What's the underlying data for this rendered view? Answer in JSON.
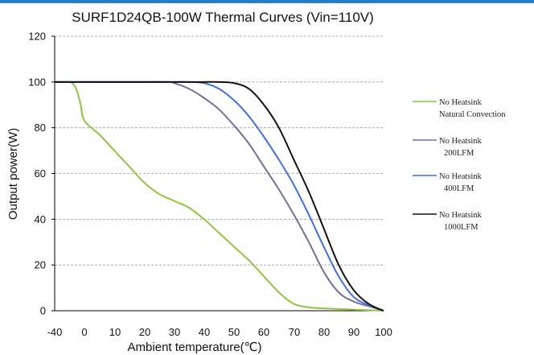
{
  "chart_data": {
    "type": "line",
    "title": "SURF1D24QB-100W Thermal Curves (Vin=110V)",
    "xlabel": "Ambient temperature(℃)",
    "ylabel": "Output power(W)",
    "xticks": [
      "-40",
      "0",
      "10",
      "20",
      "30",
      "40",
      "50",
      "60",
      "70",
      "80",
      "90",
      "100"
    ],
    "yticks": [
      0,
      20,
      40,
      60,
      80,
      100,
      120
    ],
    "ylim": [
      0,
      120
    ],
    "grid": "horizontal dashed",
    "legend_position": "right",
    "series": [
      {
        "legend_lines": [
          "No Heatsink",
          "Natural Convection"
        ],
        "color": "#8cc63f",
        "points": [
          [
            -40,
            100
          ],
          [
            -35,
            100
          ],
          [
            -30,
            100
          ],
          [
            -20,
            100
          ],
          [
            -15,
            99
          ],
          [
            -10,
            96
          ],
          [
            -5,
            90
          ],
          [
            0,
            83
          ],
          [
            5,
            77
          ],
          [
            10,
            70
          ],
          [
            15,
            63
          ],
          [
            20,
            56
          ],
          [
            25,
            51
          ],
          [
            30,
            48
          ],
          [
            35,
            45
          ],
          [
            40,
            40
          ],
          [
            45,
            34
          ],
          [
            50,
            28
          ],
          [
            55,
            22
          ],
          [
            60,
            15
          ],
          [
            65,
            8
          ],
          [
            70,
            3
          ],
          [
            75,
            1.5
          ],
          [
            80,
            1
          ],
          [
            90,
            0.5
          ],
          [
            100,
            0
          ]
        ]
      },
      {
        "legend_lines": [
          "No Heatsink",
          "200LFM"
        ],
        "color": "#7a6c96",
        "points": [
          [
            -40,
            100
          ],
          [
            0,
            100
          ],
          [
            20,
            100
          ],
          [
            28,
            100
          ],
          [
            30,
            99.5
          ],
          [
            35,
            97
          ],
          [
            40,
            93
          ],
          [
            45,
            88
          ],
          [
            50,
            81
          ],
          [
            55,
            73
          ],
          [
            60,
            63
          ],
          [
            65,
            53
          ],
          [
            70,
            42
          ],
          [
            75,
            30
          ],
          [
            80,
            17
          ],
          [
            85,
            8
          ],
          [
            90,
            4
          ],
          [
            95,
            2
          ],
          [
            100,
            0
          ]
        ]
      },
      {
        "legend_lines": [
          "No Heatsink",
          "400LFM"
        ],
        "color": "#3d6fe0",
        "points": [
          [
            -40,
            100
          ],
          [
            0,
            100
          ],
          [
            20,
            100
          ],
          [
            30,
            100
          ],
          [
            35,
            100
          ],
          [
            40,
            99.5
          ],
          [
            45,
            97
          ],
          [
            50,
            92
          ],
          [
            55,
            85
          ],
          [
            60,
            76
          ],
          [
            65,
            66
          ],
          [
            70,
            55
          ],
          [
            75,
            42
          ],
          [
            80,
            28
          ],
          [
            85,
            15
          ],
          [
            90,
            6
          ],
          [
            95,
            2.5
          ],
          [
            100,
            0
          ]
        ]
      },
      {
        "legend_lines": [
          "No Heatsink",
          "1000LFM"
        ],
        "color": "#111111",
        "points": [
          [
            -40,
            100
          ],
          [
            0,
            100
          ],
          [
            20,
            100
          ],
          [
            30,
            100
          ],
          [
            35,
            100
          ],
          [
            40,
            100
          ],
          [
            45,
            100
          ],
          [
            50,
            99.5
          ],
          [
            55,
            97
          ],
          [
            60,
            90
          ],
          [
            65,
            80
          ],
          [
            70,
            66
          ],
          [
            75,
            52
          ],
          [
            80,
            36
          ],
          [
            85,
            20
          ],
          [
            90,
            9
          ],
          [
            95,
            3
          ],
          [
            100,
            0
          ]
        ]
      }
    ]
  }
}
